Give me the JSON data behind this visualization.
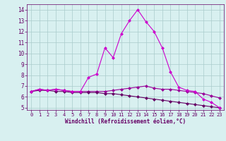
{
  "xlabel": "Windchill (Refroidissement éolien,°C)",
  "x": [
    0,
    1,
    2,
    3,
    4,
    5,
    6,
    7,
    8,
    9,
    10,
    11,
    12,
    13,
    14,
    15,
    16,
    17,
    18,
    19,
    20,
    21,
    22,
    23
  ],
  "line1": [
    6.5,
    6.7,
    6.6,
    6.7,
    6.6,
    6.5,
    6.5,
    6.5,
    6.5,
    6.5,
    6.6,
    6.7,
    6.8,
    6.9,
    7.0,
    6.8,
    6.7,
    6.7,
    6.6,
    6.5,
    6.4,
    6.3,
    6.1,
    5.9
  ],
  "line2": [
    6.5,
    6.6,
    6.6,
    6.5,
    6.5,
    6.4,
    6.4,
    6.4,
    6.4,
    6.3,
    6.3,
    6.2,
    6.1,
    6.0,
    5.9,
    5.8,
    5.7,
    5.6,
    5.5,
    5.4,
    5.3,
    5.2,
    5.1,
    5.0
  ],
  "line3": [
    6.5,
    6.7,
    6.6,
    6.7,
    6.6,
    6.5,
    6.5,
    7.8,
    8.1,
    10.5,
    9.6,
    11.8,
    13.0,
    14.0,
    12.9,
    12.0,
    10.5,
    8.3,
    6.9,
    6.6,
    6.5,
    5.8,
    5.5,
    5.0
  ],
  "line_color1": "#990099",
  "line_color2": "#660066",
  "line_color3": "#cc00cc",
  "bg_color": "#d8f0f0",
  "grid_color": "#aacccc",
  "tick_color": "#660066",
  "label_color": "#660066",
  "xlim": [
    -0.5,
    23.5
  ],
  "ylim": [
    4.8,
    14.5
  ],
  "yticks": [
    5,
    6,
    7,
    8,
    9,
    10,
    11,
    12,
    13,
    14
  ],
  "xticks": [
    0,
    1,
    2,
    3,
    4,
    5,
    6,
    7,
    8,
    9,
    10,
    11,
    12,
    13,
    14,
    15,
    16,
    17,
    18,
    19,
    20,
    21,
    22,
    23
  ],
  "marker": "D",
  "markersize": 2.5,
  "linewidth": 0.8
}
